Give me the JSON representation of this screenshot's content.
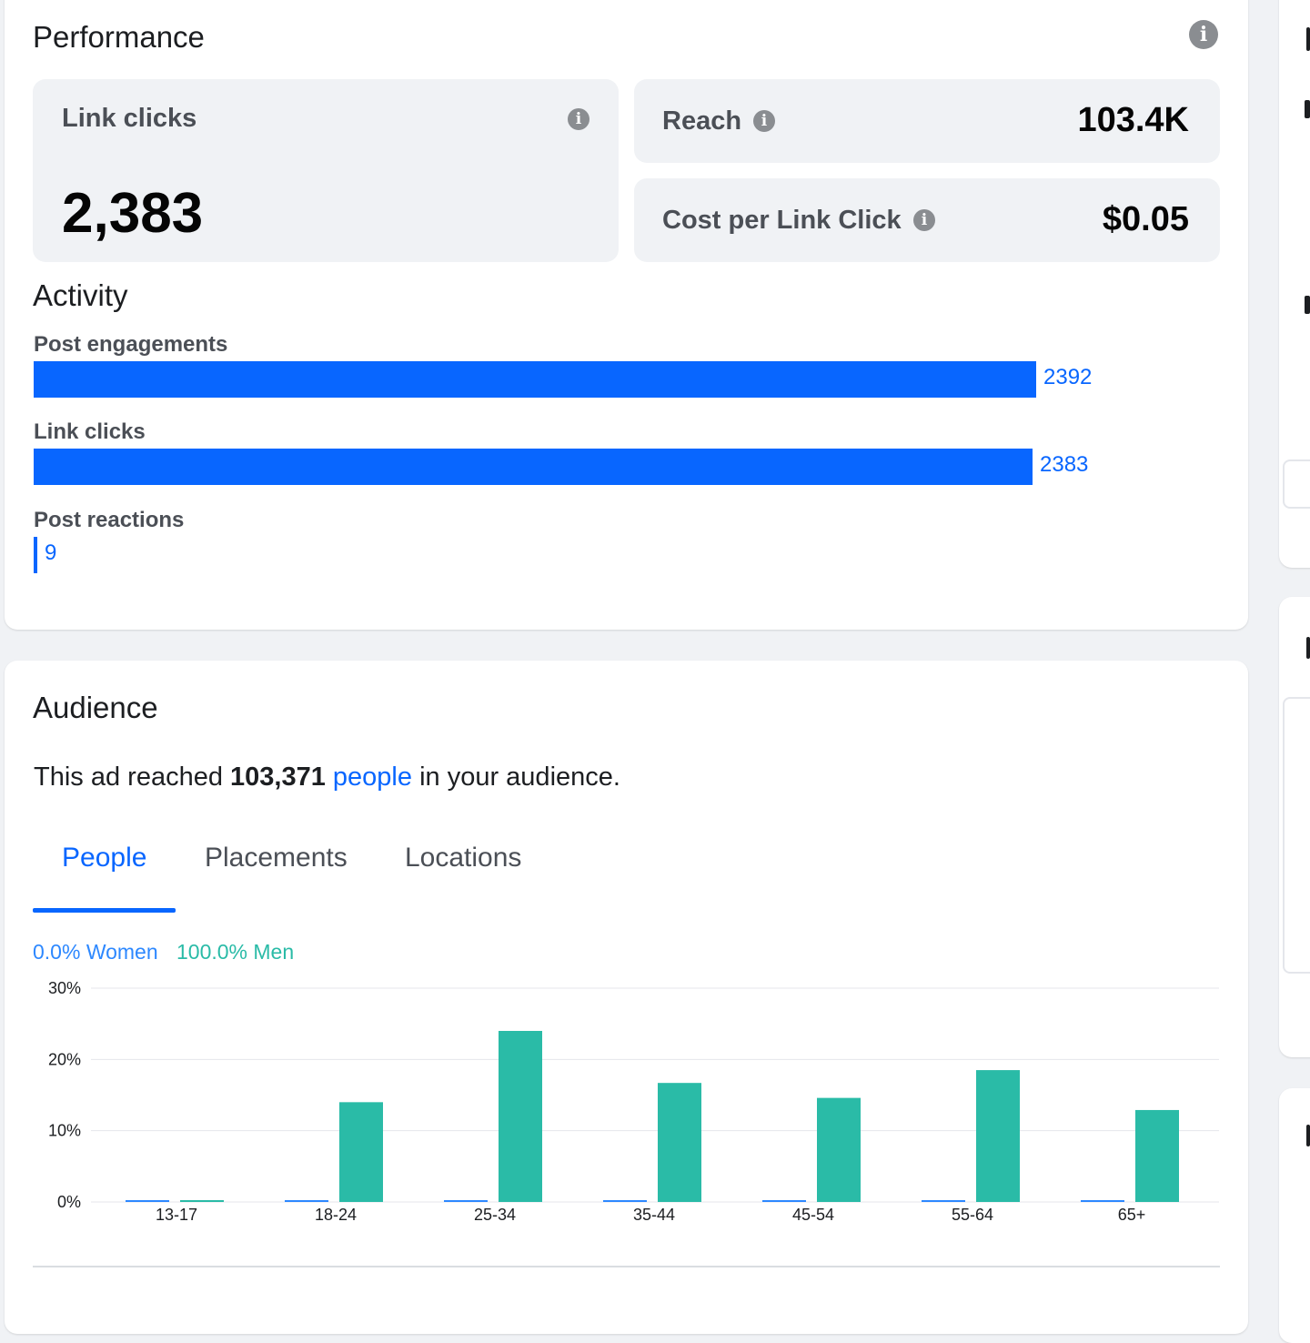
{
  "performance": {
    "title": "Performance",
    "link_clicks": {
      "label": "Link clicks",
      "value": "2,383"
    },
    "reach": {
      "label": "Reach",
      "value": "103.4K"
    },
    "cost_per_link_click": {
      "label": "Cost per Link Click",
      "value": "$0.05"
    }
  },
  "activity": {
    "title": "Activity",
    "items": [
      {
        "label": "Post engagements",
        "value": 2392
      },
      {
        "label": "Link clicks",
        "value": 2383
      },
      {
        "label": "Post reactions",
        "value": 9
      }
    ]
  },
  "audience": {
    "title": "Audience",
    "reach_prefix": "This ad reached",
    "reach_count": "103,371",
    "reach_link": "people",
    "reach_suffix": "in your audience.",
    "tabs": [
      {
        "label": "People",
        "active": true
      },
      {
        "label": "Placements",
        "active": false
      },
      {
        "label": "Locations",
        "active": false
      }
    ],
    "legend": {
      "women": "0.0% Women",
      "men": "100.0% Men"
    }
  },
  "colors": {
    "accent": "#0866ff",
    "women": "#2d88ff",
    "men": "#2abba7"
  },
  "chart_data": {
    "type": "bar",
    "categories": [
      "13-17",
      "18-24",
      "25-34",
      "35-44",
      "45-54",
      "55-64",
      "65+"
    ],
    "series": [
      {
        "name": "Women",
        "values": [
          0,
          0,
          0,
          0,
          0,
          0,
          0
        ]
      },
      {
        "name": "Men",
        "values": [
          0,
          14,
          24,
          16.7,
          14.6,
          18.5,
          12.9
        ]
      }
    ],
    "yticks": [
      "30%",
      "20%",
      "10%",
      "0%"
    ],
    "ylim": [
      0,
      30
    ],
    "grid": true
  }
}
